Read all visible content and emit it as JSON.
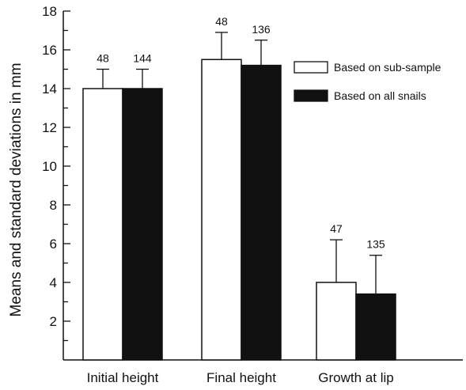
{
  "chart_data": {
    "type": "bar",
    "ylabel": "Means and standard deviations in mm",
    "xlabel": "",
    "ylim": [
      0,
      18
    ],
    "yticks": [
      2,
      4,
      6,
      8,
      10,
      12,
      14,
      16,
      18
    ],
    "categories": [
      "Initial height",
      "Final height",
      "Growth at lip"
    ],
    "series": [
      {
        "name": "Based on sub-sample",
        "values": [
          14.0,
          15.5,
          4.0
        ],
        "sd": [
          1.0,
          1.4,
          2.2
        ],
        "n_labels": [
          "48",
          "48",
          "47"
        ],
        "color": "#ffffff"
      },
      {
        "name": "Based on all snails",
        "values": [
          14.0,
          15.2,
          3.4
        ],
        "sd": [
          1.0,
          1.3,
          2.0
        ],
        "n_labels": [
          "144",
          "136",
          "135"
        ],
        "color": "#111111"
      }
    ],
    "legend_position": "upper-right",
    "grid": false
  }
}
